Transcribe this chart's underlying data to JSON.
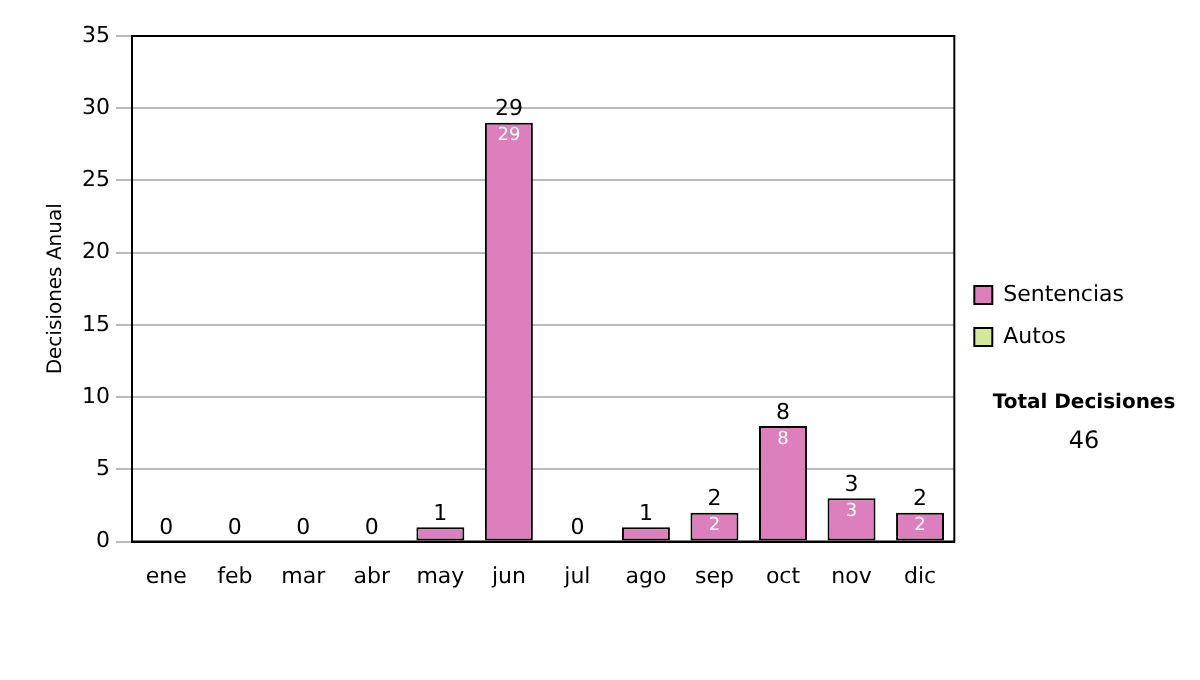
{
  "chart_data": {
    "type": "bar",
    "ylabel": "Decisiones Anual",
    "categories": [
      "ene",
      "feb",
      "mar",
      "abr",
      "may",
      "jun",
      "jul",
      "ago",
      "sep",
      "oct",
      "nov",
      "dic"
    ],
    "series": [
      {
        "name": "Sentencias",
        "color": "#dd7fbd",
        "values": [
          0,
          0,
          0,
          0,
          1,
          29,
          0,
          1,
          2,
          8,
          3,
          2
        ],
        "value_labels": [
          null,
          null,
          null,
          null,
          null,
          "29",
          null,
          null,
          "2",
          "8",
          "3",
          "2"
        ]
      },
      {
        "name": "Autos",
        "color": "#d4e89a",
        "values": [
          0,
          0,
          0,
          0,
          0,
          0,
          0,
          0,
          0,
          0,
          0,
          0
        ]
      }
    ],
    "stacked": true,
    "totals": [
      "0",
      "0",
      "0",
      "0",
      "1",
      "29",
      "0",
      "1",
      "2",
      "8",
      "3",
      "2"
    ],
    "ylim": [
      0,
      35
    ],
    "yticks": [
      0,
      5,
      10,
      15,
      20,
      25,
      30,
      35
    ],
    "grid": "y",
    "legend": "right",
    "annotations": [
      "Total Decisiones",
      "46"
    ]
  }
}
